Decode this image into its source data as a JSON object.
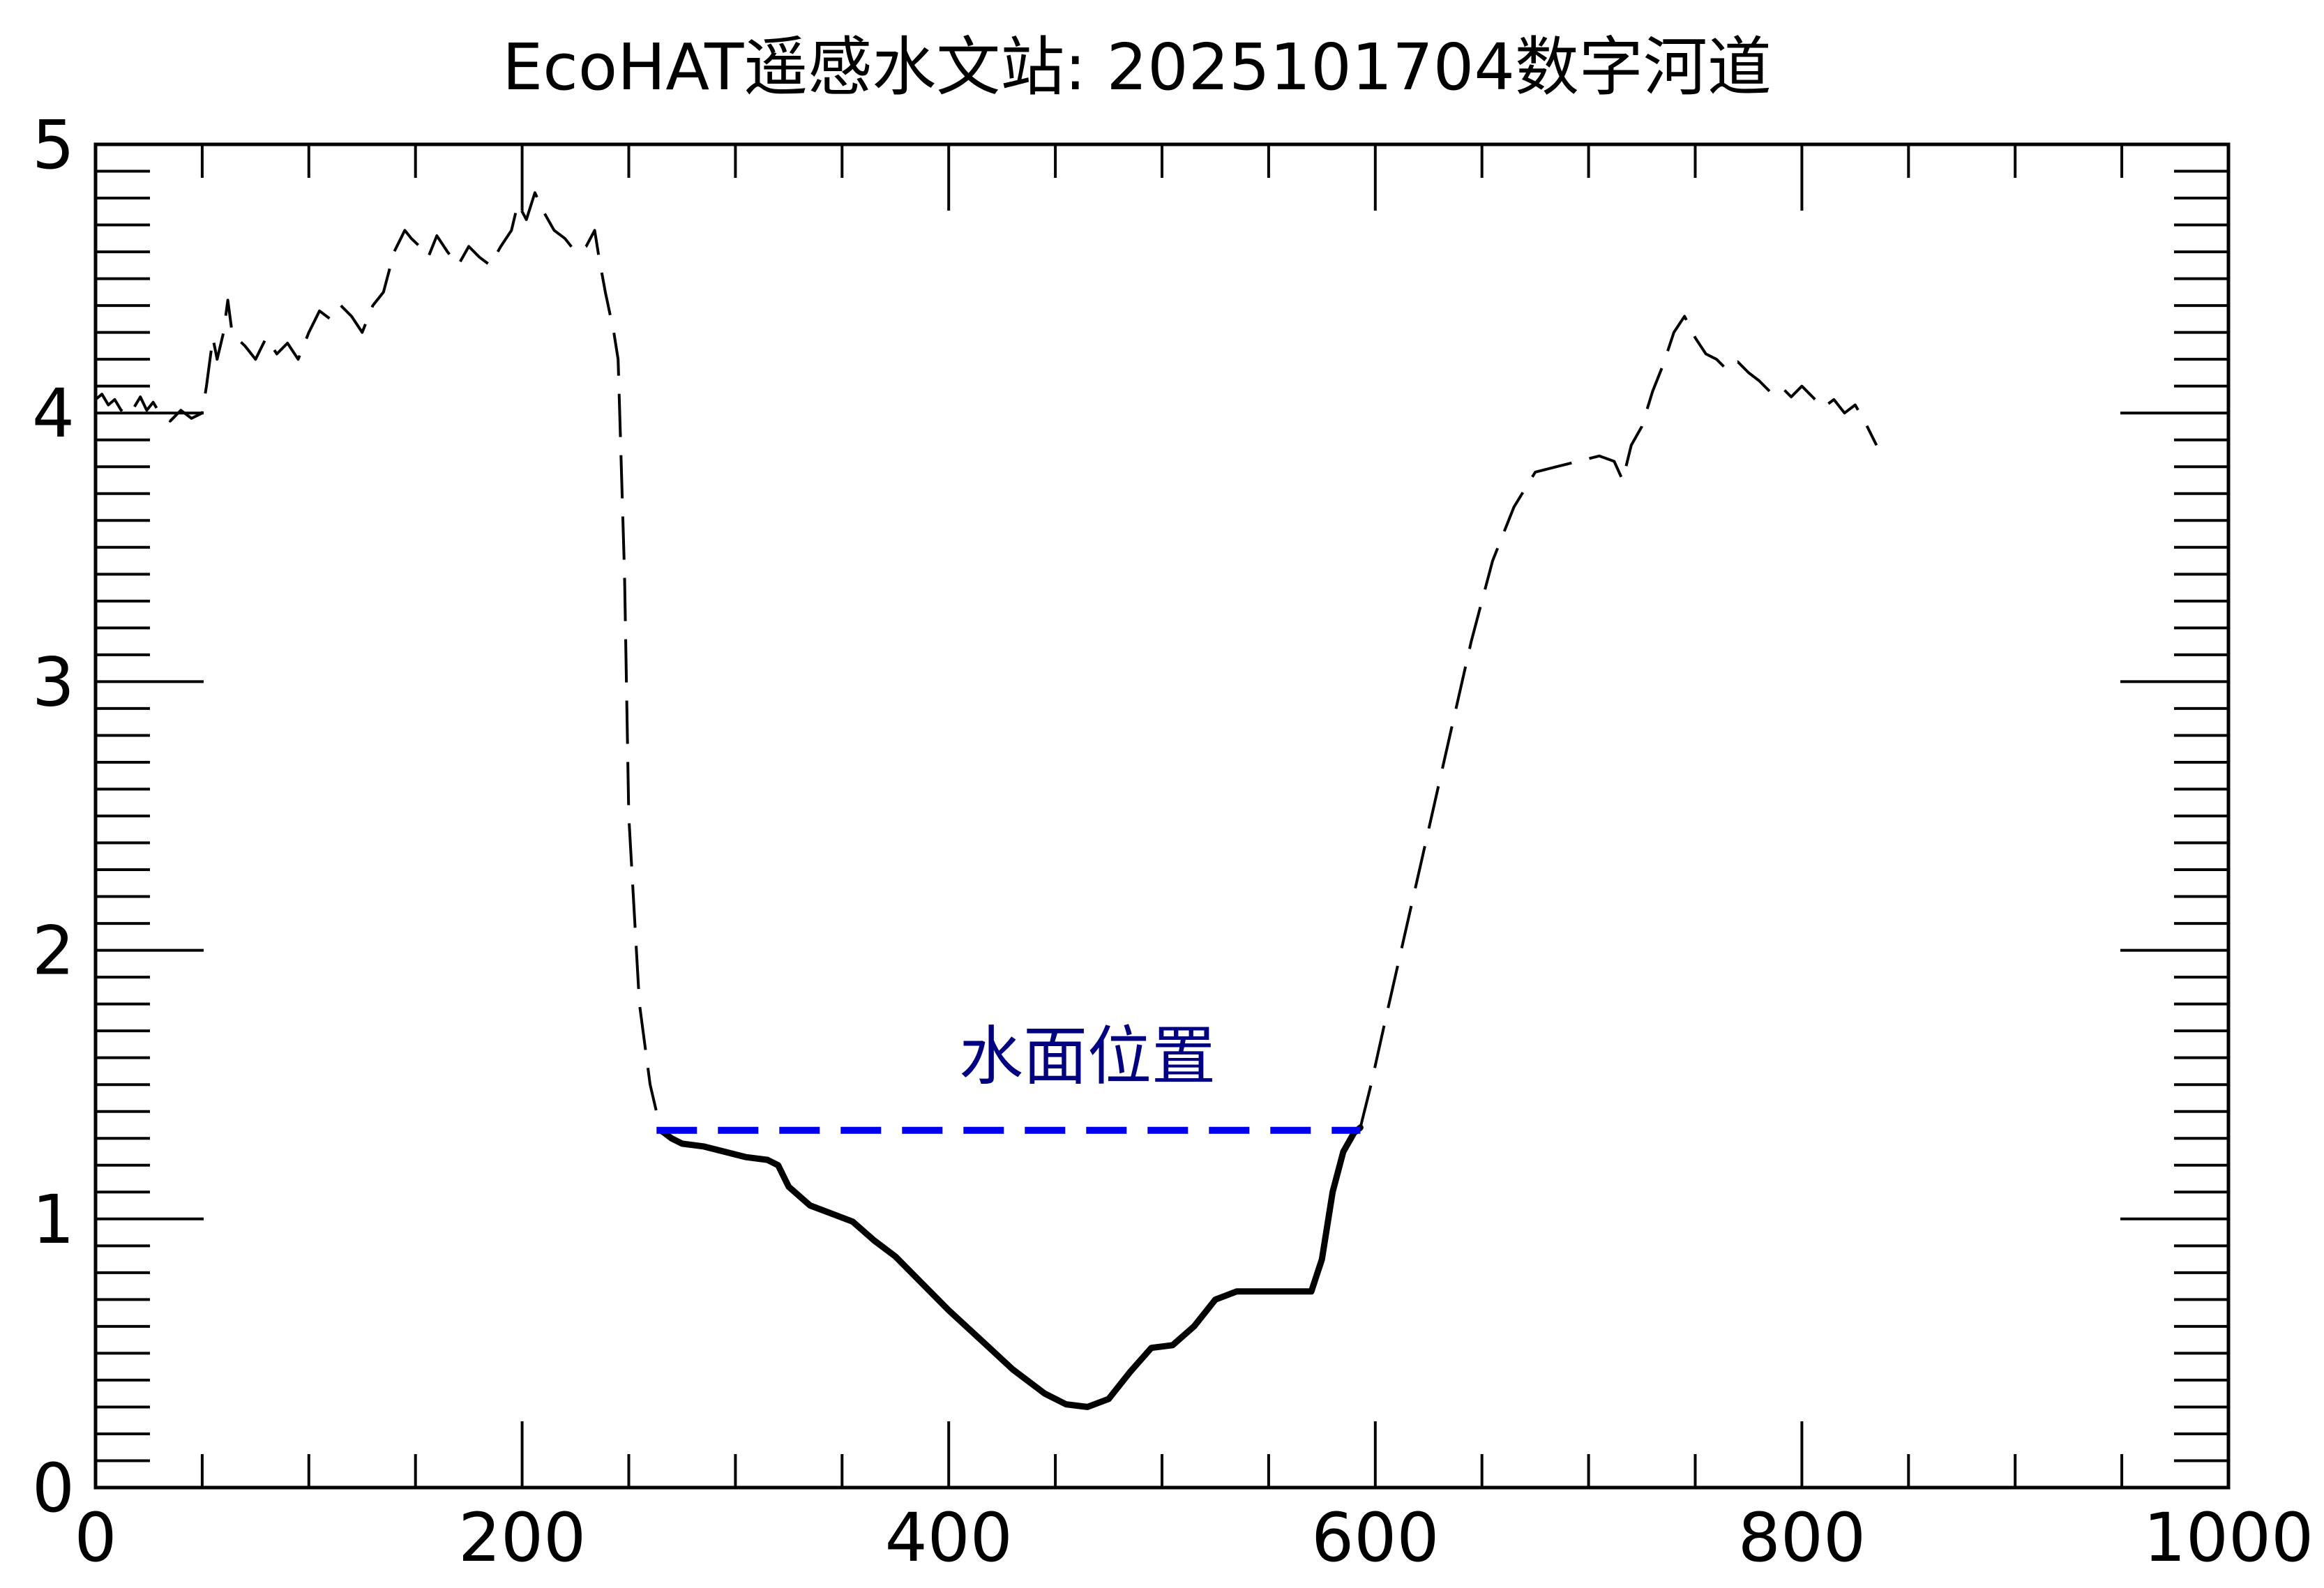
{
  "chart_data": {
    "type": "line",
    "title": "EcoHAT遥感水文站: 2025101704数字河道",
    "xlabel": "",
    "ylabel": "",
    "xlim": [
      0,
      1000
    ],
    "ylim": [
      0,
      5
    ],
    "x_ticks": [
      0,
      200,
      400,
      600,
      800,
      1000
    ],
    "x_tick_labels": [
      "0",
      "200",
      "400",
      "600",
      "800",
      "1000"
    ],
    "y_ticks": [
      0,
      1,
      2,
      3,
      4,
      5
    ],
    "y_tick_labels": [
      "0",
      "1",
      "2",
      "3",
      "4",
      "5"
    ],
    "x_minor_step": 50,
    "y_minor_step": 0.1,
    "grid": false,
    "annotation": {
      "text": "水面位置",
      "x": 465,
      "y": 1.6,
      "color": "#000080"
    },
    "series": [
      {
        "style": "dashed",
        "color": "#000000",
        "x": [
          0,
          3,
          6,
          9,
          12,
          15,
          18,
          21,
          24,
          27,
          30,
          35,
          40,
          45,
          50,
          52,
          55,
          57,
          60,
          62,
          64,
          66,
          70,
          75,
          80,
          85,
          90,
          95,
          100,
          105,
          110,
          115,
          120,
          125,
          130,
          135,
          140,
          145,
          148,
          152,
          156,
          160,
          165,
          170,
          175,
          180,
          185,
          190,
          195,
          198,
          202,
          206,
          210,
          215,
          220,
          225,
          230,
          234,
          236,
          239,
          243,
          245,
          248,
          250,
          255,
          260,
          265
        ],
        "y": [
          4.05,
          4.07,
          4.03,
          4.05,
          4.01,
          4.04,
          4.02,
          4.06,
          4.01,
          4.04,
          4.0,
          3.97,
          4.01,
          3.98,
          4.0,
          4.1,
          4.28,
          4.2,
          4.3,
          4.42,
          4.3,
          4.28,
          4.25,
          4.2,
          4.28,
          4.22,
          4.26,
          4.2,
          4.3,
          4.38,
          4.35,
          4.4,
          4.36,
          4.3,
          4.4,
          4.45,
          4.6,
          4.68,
          4.65,
          4.62,
          4.58,
          4.66,
          4.6,
          4.55,
          4.62,
          4.58,
          4.55,
          4.62,
          4.68,
          4.78,
          4.72,
          4.82,
          4.75,
          4.68,
          4.65,
          4.6,
          4.62,
          4.68,
          4.58,
          4.45,
          4.3,
          4.2,
          3.4,
          2.5,
          1.8,
          1.5,
          1.33
        ]
      },
      {
        "style": "solid",
        "color": "#000000",
        "x": [
          265,
          270,
          275,
          285,
          295,
          305,
          315,
          320,
          325,
          335,
          345,
          355,
          365,
          375,
          385,
          400,
          415,
          430,
          445,
          455,
          465,
          475,
          485,
          495,
          505,
          515,
          525,
          535,
          545,
          555,
          565,
          570,
          575,
          580,
          585,
          590,
          593
        ],
        "y": [
          1.33,
          1.3,
          1.28,
          1.27,
          1.25,
          1.23,
          1.22,
          1.2,
          1.12,
          1.05,
          1.02,
          0.99,
          0.92,
          0.86,
          0.78,
          0.66,
          0.55,
          0.44,
          0.35,
          0.31,
          0.3,
          0.33,
          0.43,
          0.52,
          0.53,
          0.6,
          0.7,
          0.73,
          0.73,
          0.73,
          0.73,
          0.73,
          0.85,
          1.1,
          1.25,
          1.32,
          1.34
        ]
      },
      {
        "style": "dashed",
        "color": "#000000",
        "x": [
          593,
          598,
          605,
          615,
          625,
          635,
          645,
          655,
          665,
          675,
          685,
          695,
          705,
          712,
          716,
          720,
          725,
          730,
          735,
          740,
          745,
          750,
          755,
          760,
          765,
          770,
          775,
          780,
          785,
          790,
          795,
          800,
          805,
          810,
          815,
          820,
          825,
          830,
          835
        ],
        "y": [
          1.34,
          1.5,
          1.75,
          2.1,
          2.45,
          2.8,
          3.15,
          3.45,
          3.65,
          3.78,
          3.8,
          3.82,
          3.84,
          3.82,
          3.75,
          3.88,
          3.95,
          4.08,
          4.18,
          4.3,
          4.36,
          4.28,
          4.22,
          4.2,
          4.16,
          4.19,
          4.15,
          4.12,
          4.08,
          4.1,
          4.06,
          4.1,
          4.06,
          4.02,
          4.05,
          4.0,
          4.03,
          3.96,
          3.88
        ]
      },
      {
        "style": "dashed",
        "color": "#0000ee",
        "x": [
          263,
          593
        ],
        "y": [
          1.33,
          1.33
        ]
      }
    ]
  }
}
